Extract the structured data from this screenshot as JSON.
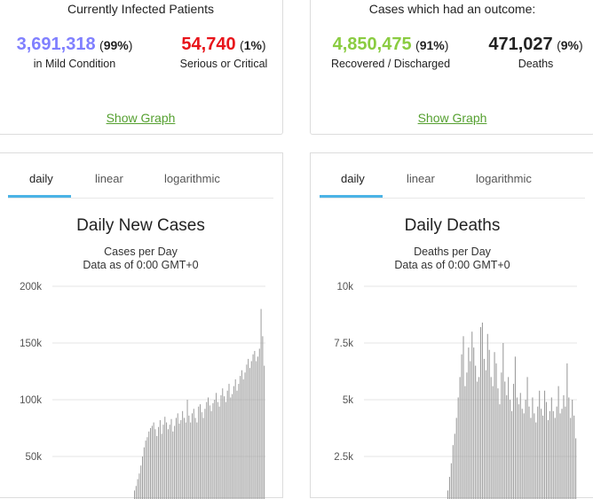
{
  "infected": {
    "title": "Currently Infected Patients",
    "mild": {
      "value": "3,691,318",
      "pct": "99%",
      "label": "in Mild Condition",
      "color": "#8080ff"
    },
    "serious": {
      "value": "54,740",
      "pct": "1%",
      "label": "Serious or Critical",
      "color": "#e8151b"
    },
    "link": "Show Graph"
  },
  "outcome": {
    "title": "Cases which had an outcome:",
    "recovered": {
      "value": "4,850,475",
      "pct": "91%",
      "label": "Recovered / Discharged",
      "color": "#8acc41"
    },
    "deaths": {
      "value": "471,027",
      "pct": "9%",
      "label": "Deaths",
      "color": "#222222"
    },
    "link": "Show Graph"
  },
  "tabs": [
    "daily",
    "linear",
    "logarithmic"
  ],
  "chart_data": [
    {
      "type": "bar",
      "title": "Daily New Cases",
      "subtitle": "Cases per Day",
      "note": "Data as of 0:00 GMT+0",
      "ylabel": "",
      "yticks": [
        "50k",
        "100k",
        "150k",
        "200k"
      ],
      "ylim": [
        0,
        200000
      ],
      "series": [
        {
          "name": "",
          "values": [
            20000,
            24000,
            30000,
            35000,
            42000,
            50000,
            58000,
            64000,
            67000,
            72000,
            75000,
            77000,
            80000,
            74000,
            68000,
            76000,
            82000,
            70000,
            78000,
            85000,
            80000,
            74000,
            78000,
            83000,
            72000,
            77000,
            84000,
            88000,
            79000,
            82000,
            90000,
            84000,
            80000,
            100000,
            86000,
            80000,
            88000,
            92000,
            84000,
            80000,
            94000,
            96000,
            89000,
            84000,
            92000,
            98000,
            102000,
            95000,
            90000,
            97000,
            100000,
            106000,
            98000,
            94000,
            104000,
            110000,
            103000,
            98000,
            108000,
            114000,
            102000,
            105000,
            112000,
            118000,
            108000,
            114000,
            121000,
            126000,
            118000,
            124000,
            131000,
            136000,
            128000,
            134000,
            140000,
            143000,
            134000,
            138000,
            145000,
            180000,
            156000,
            130000
          ]
        }
      ]
    },
    {
      "type": "bar",
      "title": "Daily Deaths",
      "subtitle": "Deaths per Day",
      "note": "Data as of 0:00 GMT+0",
      "ylabel": "",
      "yticks": [
        "2.5k",
        "5k",
        "7.5k",
        "10k"
      ],
      "ylim": [
        0,
        10000
      ],
      "series": [
        {
          "name": "",
          "values": [
            600,
            1000,
            1600,
            2200,
            3000,
            3500,
            4200,
            5100,
            6000,
            7000,
            7800,
            5600,
            6200,
            7300,
            6700,
            8000,
            7300,
            6500,
            5800,
            6000,
            8200,
            8400,
            6800,
            6300,
            7900,
            7200,
            6000,
            5600,
            7100,
            6600,
            5500,
            4800,
            6200,
            7500,
            5800,
            5200,
            6000,
            5000,
            4500,
            5700,
            6900,
            5100,
            4800,
            5300,
            4600,
            4400,
            5000,
            6000,
            4700,
            4200,
            5100,
            4400,
            4000,
            4700,
            5400,
            4600,
            4300,
            5400,
            4900,
            4100,
            4500,
            5100,
            4500,
            4200,
            4700,
            5600,
            4400,
            4600,
            5200,
            4700,
            6600,
            5100,
            4200,
            5000,
            4300,
            3300
          ]
        }
      ]
    }
  ]
}
